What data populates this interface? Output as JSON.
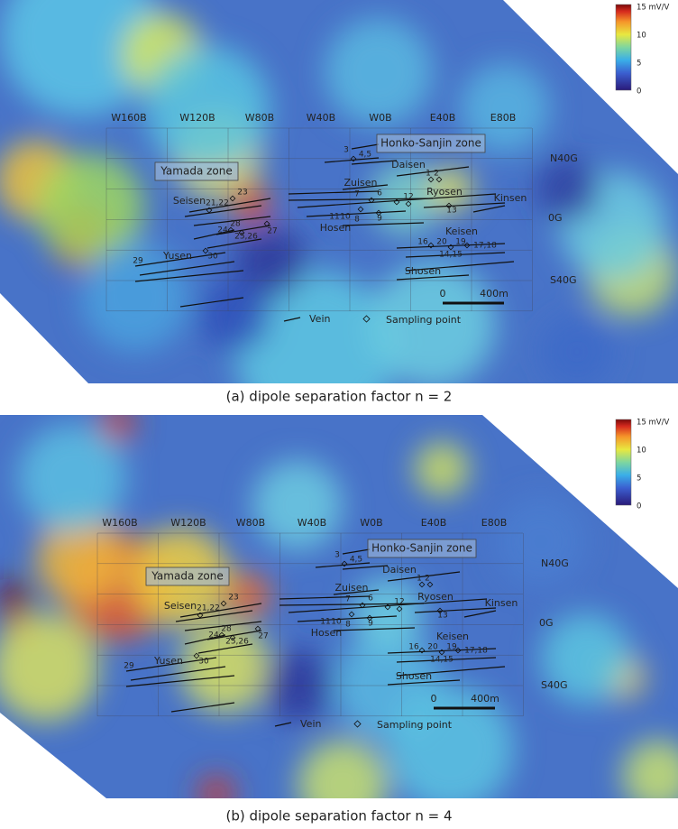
{
  "panels": [
    {
      "caption": "(a) dipole separation factor n = 2",
      "colorbar": [
        "15 mV/V",
        "10",
        "5",
        "0"
      ],
      "columns": [
        "W160B",
        "W120B",
        "W80B",
        "W40B",
        "W0B",
        "E40B",
        "E80B"
      ],
      "rows": [
        "N40G",
        "0G",
        "S40G"
      ],
      "zones": [
        "Honko-Sanjin zone",
        "Yamada zone"
      ],
      "veins": [
        "Daisen",
        "Zuisen",
        "Ryosen",
        "Kinsen",
        "Seisen",
        "Hosen",
        "Keisen",
        "Yusen",
        "Shosen"
      ],
      "samples": [
        "3",
        "4,5",
        "1",
        "2",
        "7",
        "6",
        "12",
        "11",
        "10",
        "8",
        "9",
        "13",
        "21,22",
        "23",
        "28",
        "24",
        "25,26",
        "27",
        "16",
        "20",
        "19",
        "17,18",
        "14,15",
        "29",
        "30"
      ],
      "scale": [
        "0",
        "400m"
      ],
      "legend": [
        "Vein",
        "Sampling point"
      ]
    },
    {
      "caption": "(b) dipole separation factor n = 4",
      "colorbar": [
        "15 mV/V",
        "10",
        "5",
        "0"
      ],
      "columns": [
        "W160B",
        "W120B",
        "W80B",
        "W40B",
        "W0B",
        "E40B",
        "E80B"
      ],
      "rows": [
        "N40G",
        "0G",
        "S40G"
      ],
      "zones": [
        "Honko-Sanjin zone",
        "Yamada zone"
      ],
      "veins": [
        "Daisen",
        "Zuisen",
        "Ryosen",
        "Kinsen",
        "Seisen",
        "Hosen",
        "Keisen",
        "Yusen",
        "Shosen"
      ],
      "samples": [
        "3",
        "4,5",
        "1",
        "2",
        "7",
        "6",
        "12",
        "11",
        "10",
        "8",
        "9",
        "13",
        "21,22",
        "23",
        "28",
        "24",
        "25,26",
        "27",
        "16",
        "20",
        "19",
        "17,18",
        "14,15",
        "29",
        "30"
      ],
      "scale": [
        "0",
        "400m"
      ],
      "legend": [
        "Vein",
        "Sampling point"
      ]
    }
  ]
}
